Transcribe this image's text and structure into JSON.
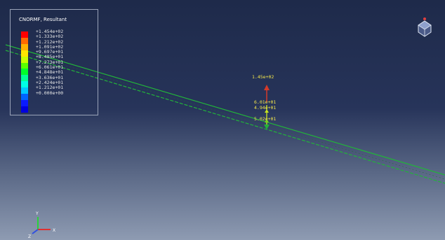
{
  "legend": {
    "title": "CNORMF, Resultant",
    "colors": [
      "#ff0000",
      "#ff6a00",
      "#ffb000",
      "#ffe600",
      "#c8ff00",
      "#5aff00",
      "#00ff2a",
      "#00ff96",
      "#00ffe6",
      "#00c8ff",
      "#0064ff",
      "#0a1aff",
      "#0000e0"
    ],
    "labels": [
      "+1.454e+02",
      "+1.333e+02",
      "+1.212e+02",
      "+1.091e+02",
      "+9.697e+01",
      "+8.485e+01",
      "+7.273e+01",
      "+6.061e+01",
      "+4.848e+01",
      "+3.636e+01",
      "+2.424e+01",
      "+1.212e+01",
      "+0.000e+00"
    ]
  },
  "annotations": {
    "max_value": "1.45e+02",
    "mid_value_1": "6.01e+01",
    "mid_value_2": "4.94e+01",
    "low_value": "5.02e+01"
  },
  "triad": {
    "x": "X",
    "y": "Y",
    "z": "Z"
  },
  "colors": {
    "line": "#22b33a",
    "annotation": "#f2e64c",
    "arrow": "#d43a2a"
  }
}
